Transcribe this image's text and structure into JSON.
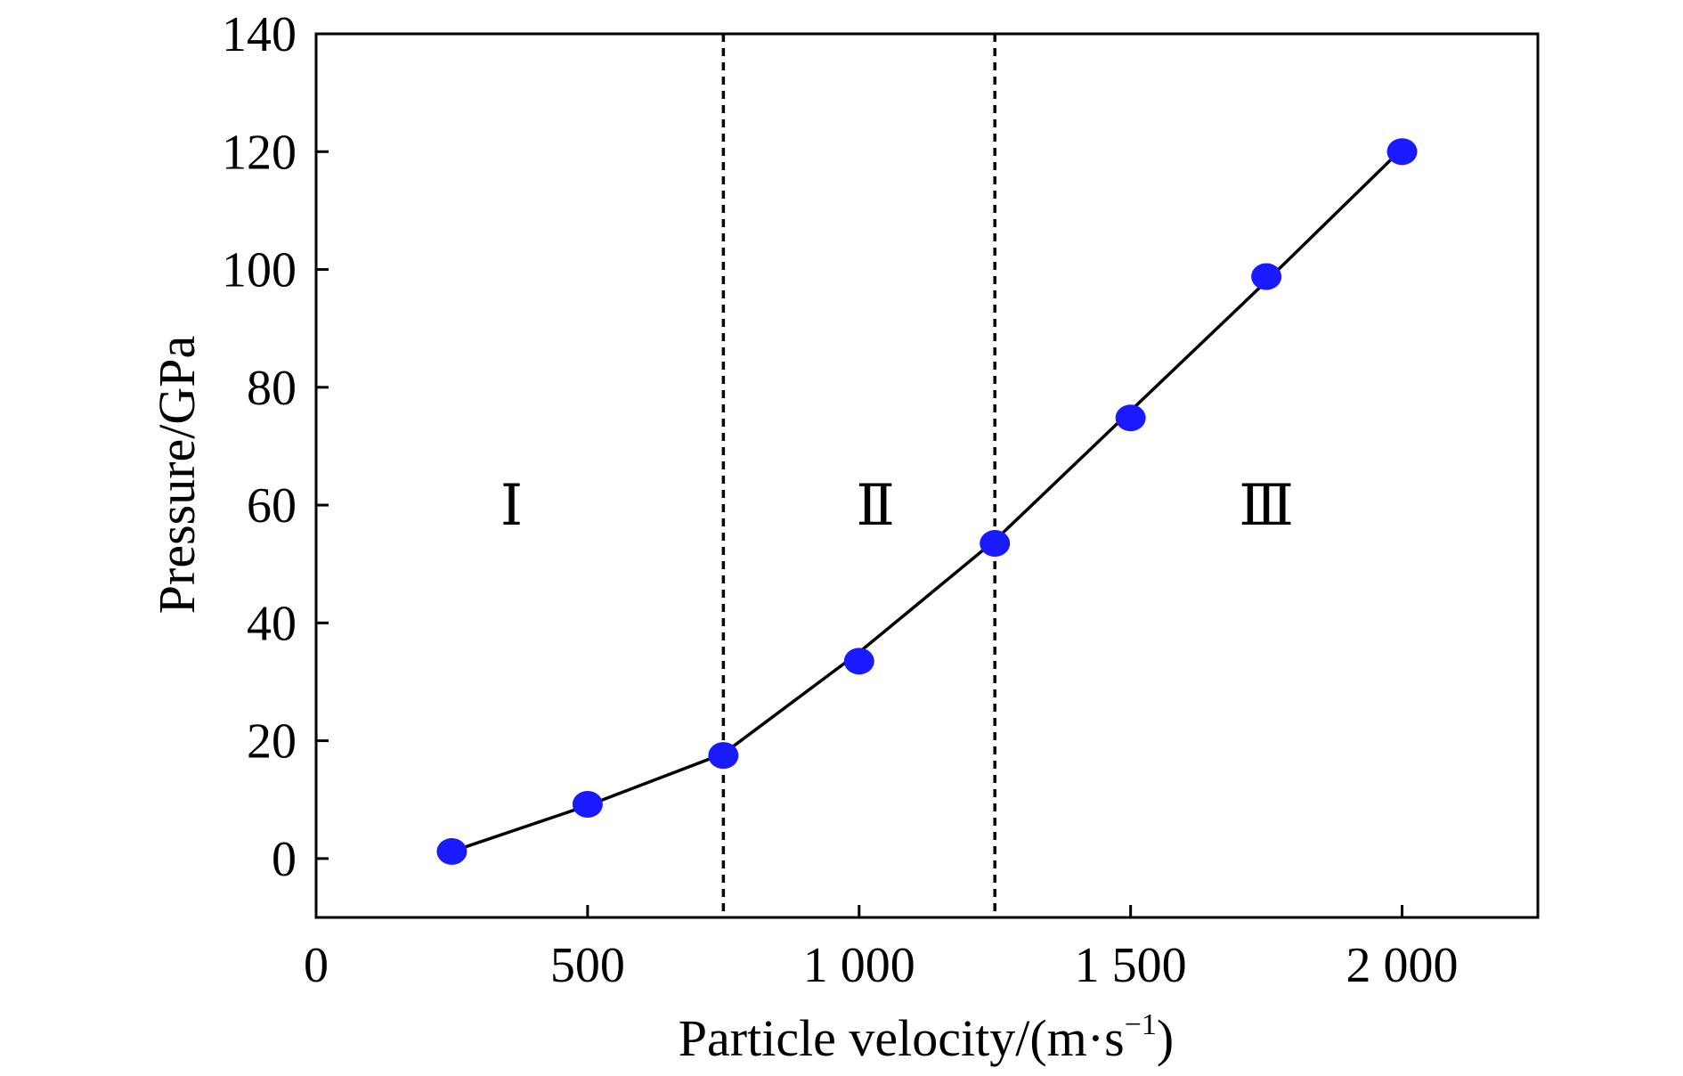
{
  "chart_data": {
    "type": "line",
    "title": "",
    "xlabel": "Particle velocity/(m·s",
    "xlabel_sup": "−1",
    "xlabel_close": ")",
    "ylabel": "Pressure/GPa",
    "xlim": [
      0,
      2250
    ],
    "ylim": [
      -10,
      140
    ],
    "x_ticks": [
      {
        "value": 0,
        "label": "0"
      },
      {
        "value": 500,
        "label": "500"
      },
      {
        "value": 1000,
        "label": "1 000"
      },
      {
        "value": 1500,
        "label": "1 500"
      },
      {
        "value": 2000,
        "label": "2 000"
      }
    ],
    "y_ticks": [
      {
        "value": 0,
        "label": "0"
      },
      {
        "value": 20,
        "label": "20"
      },
      {
        "value": 40,
        "label": "40"
      },
      {
        "value": 60,
        "label": "60"
      },
      {
        "value": 80,
        "label": "80"
      },
      {
        "value": 100,
        "label": "100"
      },
      {
        "value": 120,
        "label": "120"
      },
      {
        "value": 140,
        "label": "140"
      }
    ],
    "series": [
      {
        "x": [
          250,
          500,
          750,
          1000,
          1250,
          1500,
          1750,
          2000
        ],
        "y": [
          1.2,
          9.2,
          17.5,
          33.5,
          53.5,
          74.8,
          98.8,
          120
        ]
      }
    ],
    "fit_line": {
      "x": [
        250,
        500,
        750,
        1000,
        1250,
        1500,
        1750,
        2000
      ],
      "y": [
        1.2,
        9.0,
        17.8,
        35.0,
        54.0,
        76.0,
        98.0,
        120.5
      ]
    },
    "region_dividers": [
      750,
      1250
    ],
    "regions": [
      {
        "label": "Ⅰ",
        "x": 360,
        "y": 60
      },
      {
        "label": "Ⅱ",
        "x": 1030,
        "y": 60
      },
      {
        "label": "Ⅲ",
        "x": 1750,
        "y": 60
      }
    ],
    "marker_color": "#1a1aff",
    "line_color": "#000000",
    "grid": false
  }
}
